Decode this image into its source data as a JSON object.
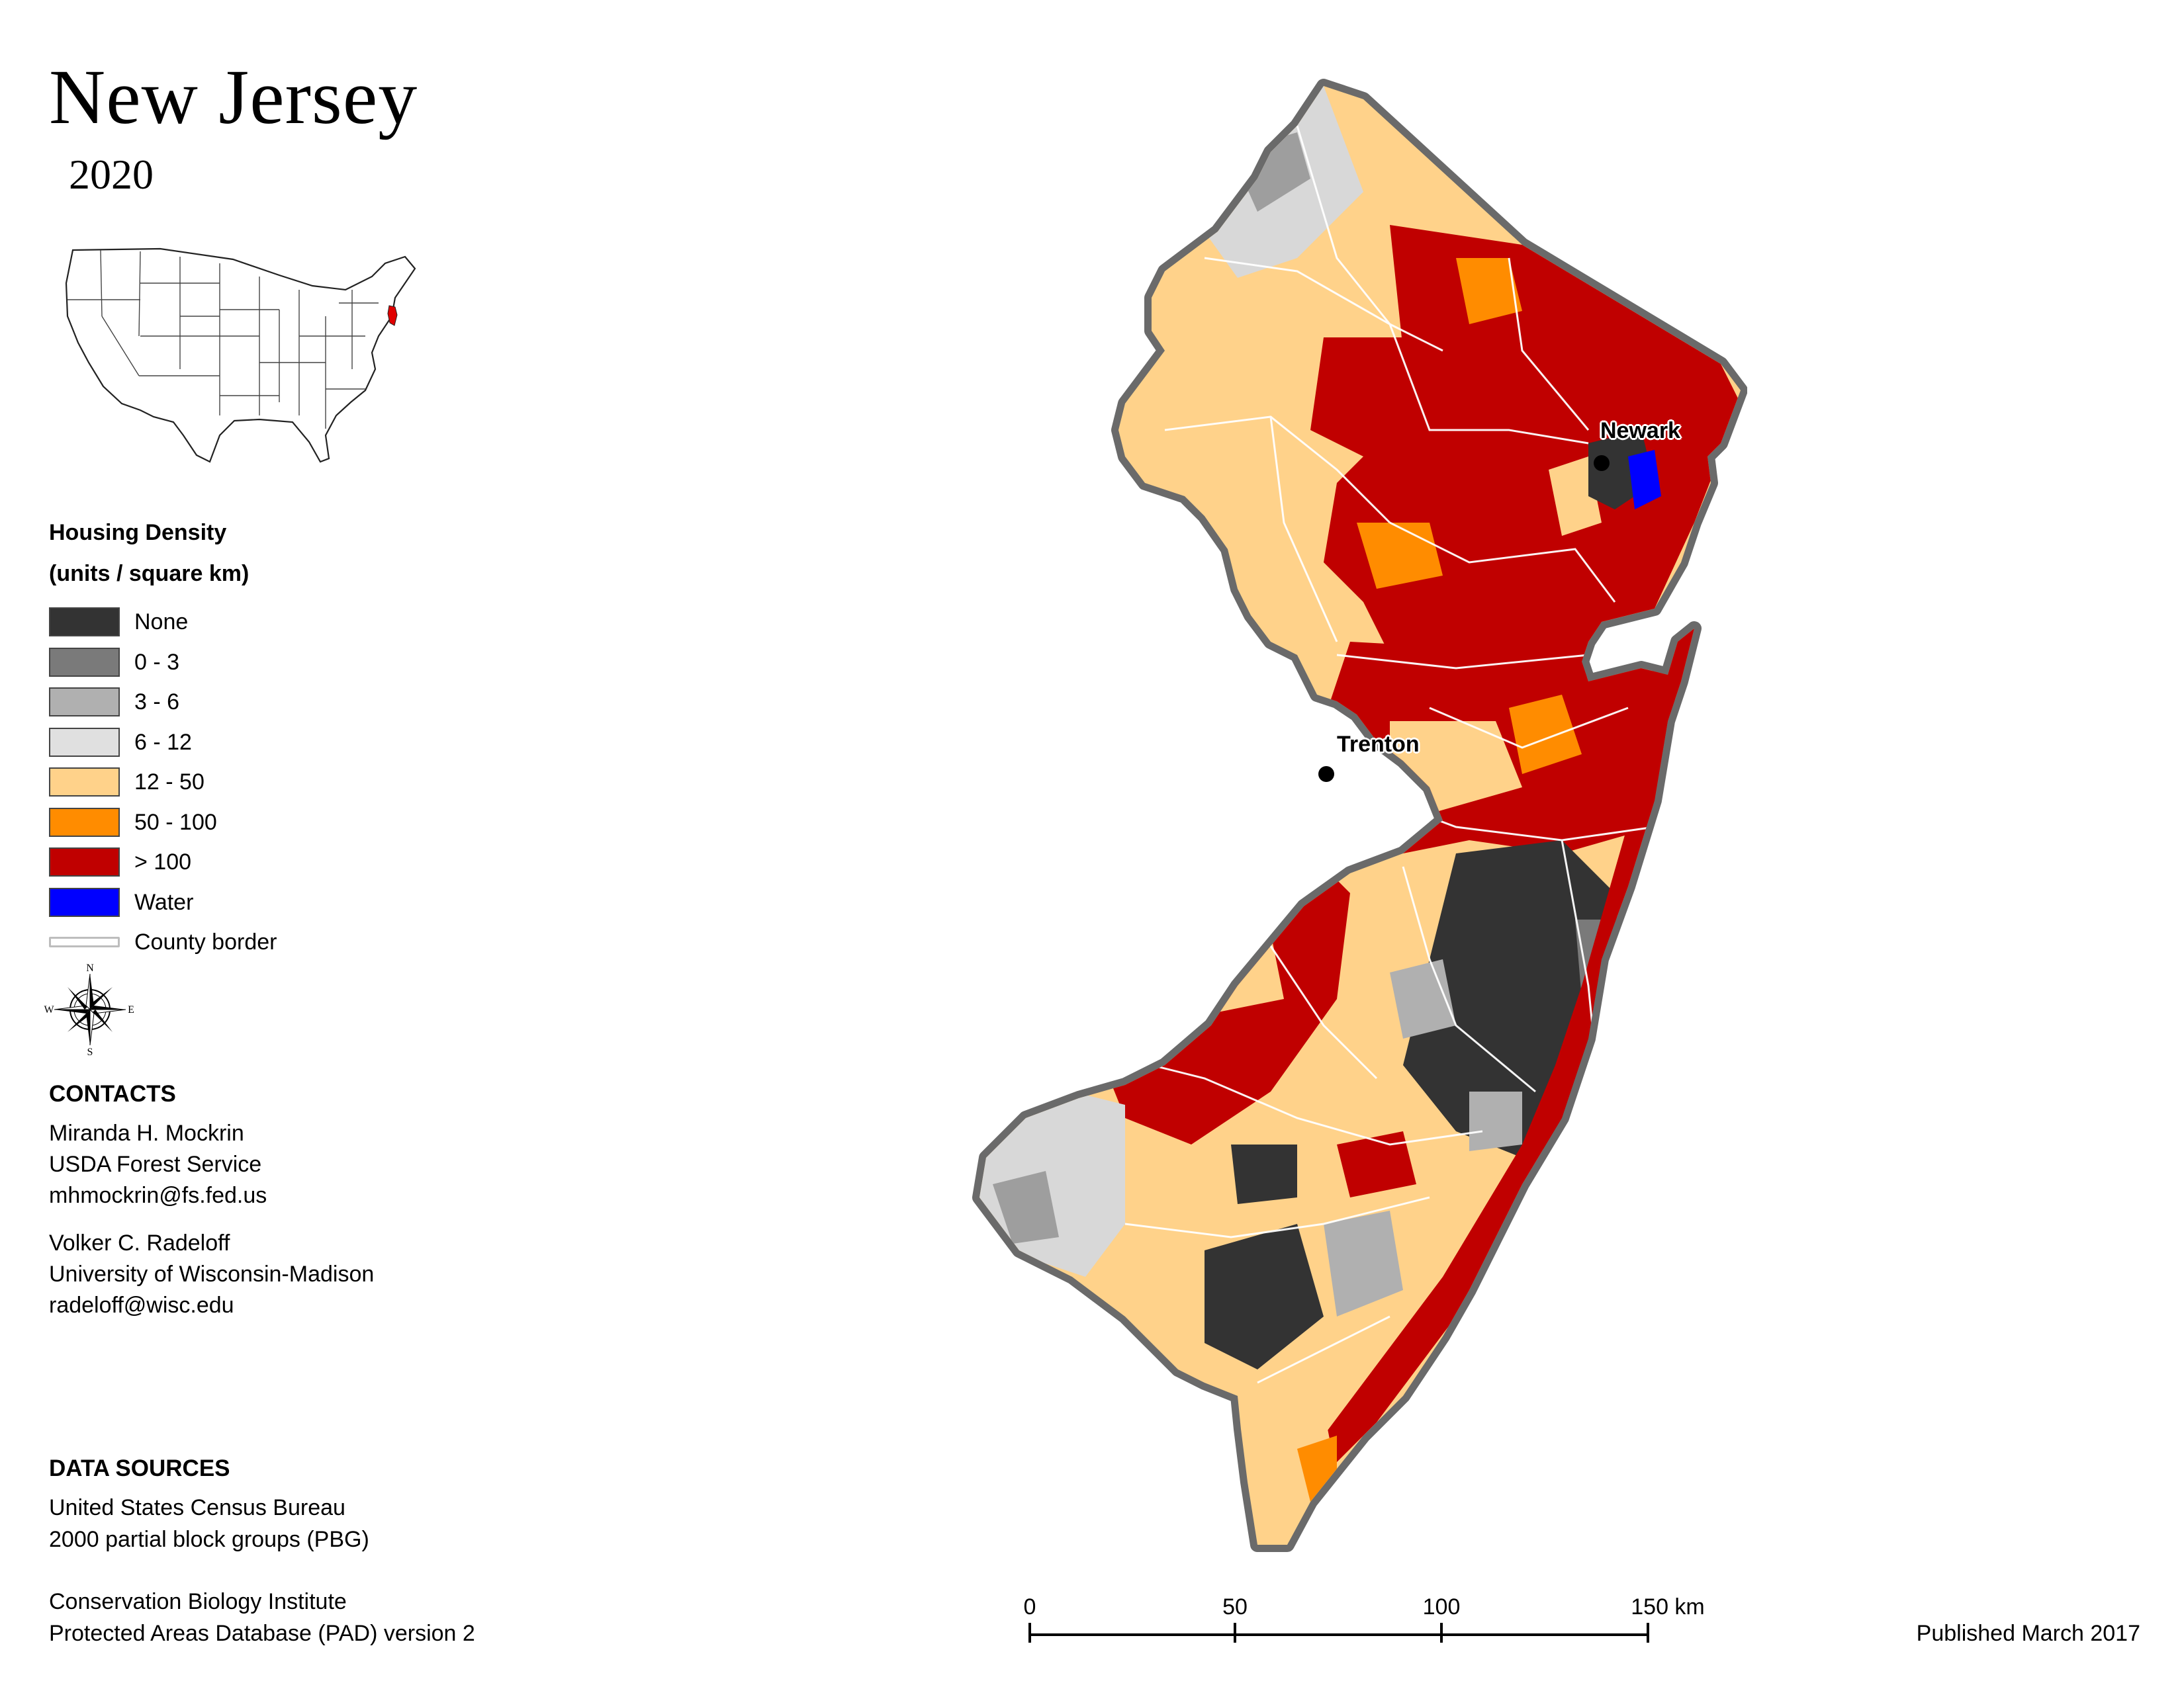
{
  "header": {
    "title": "New Jersey",
    "year": "2020"
  },
  "legend": {
    "title_line1": "Housing Density",
    "title_line2": "(units / square km)",
    "items": [
      {
        "label": "None",
        "color": "#333333"
      },
      {
        "label": "0 - 3",
        "color": "#7a7a7a"
      },
      {
        "label": "3 - 6",
        "color": "#b0b0b0"
      },
      {
        "label": "6 - 12",
        "color": "#e0e0e0"
      },
      {
        "label": "12 - 50",
        "color": "#ffd28a"
      },
      {
        "label": "50 - 100",
        "color": "#ff8c00"
      },
      {
        "label": "> 100",
        "color": "#c00000"
      },
      {
        "label": "Water",
        "color": "#0000ff"
      }
    ],
    "county_border_label": "County border"
  },
  "compass": {
    "n": "N",
    "s": "S",
    "e": "E",
    "w": "W"
  },
  "contacts": {
    "heading": "CONTACTS",
    "person1": {
      "name": "Miranda H. Mockrin",
      "org": "USDA Forest Service",
      "email": "mhmockrin@fs.fed.us"
    },
    "person2": {
      "name": "Volker C. Radeloff",
      "org": "University of Wisconsin-Madison",
      "email": "radeloff@wisc.edu"
    }
  },
  "data_sources": {
    "heading": "DATA SOURCES",
    "source1_line1": "United States Census Bureau",
    "source1_line2": "2000 partial block groups (PBG)",
    "source2_line1": "Conservation Biology Institute",
    "source2_line2": "Protected Areas Database (PAD) version 2"
  },
  "map": {
    "cities": [
      {
        "name": "Newark"
      },
      {
        "name": "Trenton"
      }
    ],
    "highlight_color": "#e00000"
  },
  "scale_bar": {
    "ticks": [
      "0",
      "50",
      "100",
      "150 km"
    ]
  },
  "footer": {
    "published": "Published March 2017"
  }
}
